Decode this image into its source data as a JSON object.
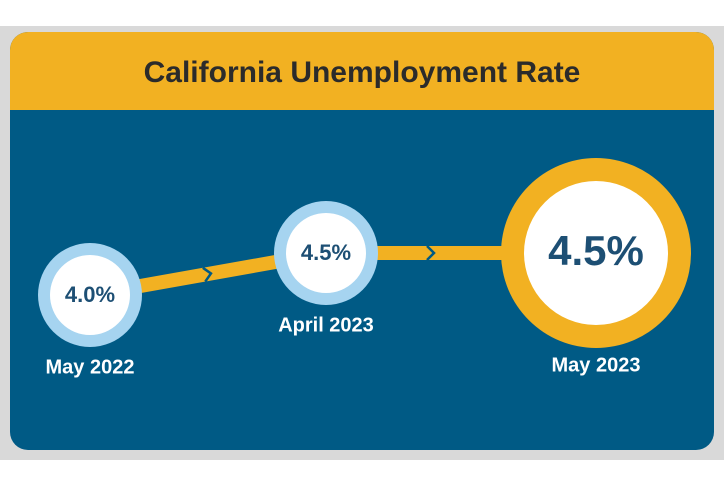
{
  "chart_data": {
    "type": "line",
    "title": "California Unemployment Rate",
    "categories": [
      "May 2022",
      "April 2023",
      "May 2023"
    ],
    "values": [
      4.0,
      4.5,
      4.5
    ],
    "value_labels": [
      "4.0%",
      "4.5%",
      "4.5%"
    ],
    "color": "#f2b122"
  }
}
